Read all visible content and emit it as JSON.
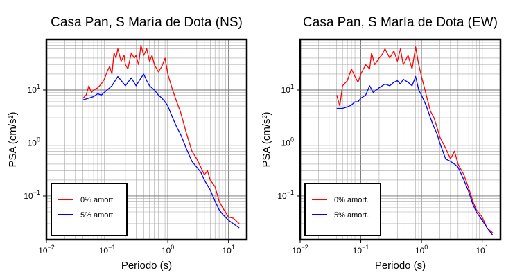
{
  "chart_data": [
    {
      "type": "line",
      "title": "Casa Pan, S María de Dota (NS)",
      "xlabel": "Periodo (s)",
      "ylabel": "PSA (cm/s²)",
      "xscale": "log",
      "yscale": "log",
      "xlim": [
        0.01,
        20
      ],
      "ylim": [
        0.015,
        90
      ],
      "xticks": [
        {
          "base": "10",
          "exp": "−2"
        },
        {
          "base": "10",
          "exp": "−1"
        },
        {
          "base": "10",
          "exp": "0"
        },
        {
          "base": "10",
          "exp": "1"
        }
      ],
      "yticks": [
        {
          "base": "10",
          "exp": "−1"
        },
        {
          "base": "10",
          "exp": "0"
        },
        {
          "base": "10",
          "exp": "1"
        }
      ],
      "grid": true,
      "legend_position": "bottom-left",
      "series": [
        {
          "name": "0% amort.",
          "color": "#ff0000",
          "x": [
            0.04,
            0.045,
            0.05,
            0.055,
            0.06,
            0.07,
            0.08,
            0.09,
            0.1,
            0.11,
            0.12,
            0.13,
            0.14,
            0.15,
            0.17,
            0.19,
            0.2,
            0.22,
            0.25,
            0.28,
            0.3,
            0.33,
            0.36,
            0.4,
            0.45,
            0.5,
            0.55,
            0.6,
            0.7,
            0.8,
            0.9,
            1.0,
            1.2,
            1.4,
            1.6,
            1.8,
            2.0,
            2.5,
            3.0,
            3.5,
            4.0,
            4.5,
            5.0,
            6.0,
            7.0,
            8.0,
            10.0,
            12.0,
            15.0
          ],
          "y": [
            7,
            8,
            12,
            9,
            10,
            11,
            13,
            16,
            22,
            28,
            20,
            50,
            40,
            60,
            35,
            45,
            30,
            25,
            50,
            40,
            45,
            30,
            70,
            45,
            60,
            35,
            45,
            30,
            22,
            28,
            40,
            20,
            10,
            6,
            4,
            2.5,
            1.6,
            0.7,
            0.5,
            0.35,
            0.25,
            0.3,
            0.2,
            0.15,
            0.08,
            0.06,
            0.04,
            0.038,
            0.03
          ]
        },
        {
          "name": "5% amort.",
          "color": "#0000ff",
          "x": [
            0.04,
            0.05,
            0.06,
            0.07,
            0.08,
            0.09,
            0.1,
            0.12,
            0.15,
            0.18,
            0.2,
            0.25,
            0.3,
            0.35,
            0.4,
            0.45,
            0.5,
            0.6,
            0.7,
            0.8,
            0.9,
            1.0,
            1.2,
            1.4,
            1.6,
            1.8,
            2.0,
            2.5,
            3.0,
            3.5,
            4.0,
            5.0,
            6.0,
            7.0,
            8.0,
            10.0,
            12.0,
            15.0
          ],
          "y": [
            6.5,
            7,
            7.5,
            8.5,
            8,
            9,
            10,
            12,
            18,
            14,
            12,
            17,
            12,
            16,
            20,
            15,
            12,
            10,
            8,
            7,
            6,
            5,
            3,
            2,
            1.5,
            1.1,
            0.8,
            0.45,
            0.35,
            0.28,
            0.2,
            0.13,
            0.08,
            0.055,
            0.045,
            0.035,
            0.03,
            0.025
          ]
        }
      ]
    },
    {
      "type": "line",
      "title": "Casa Pan, S María de Dota (EW)",
      "xlabel": "Periodo (s)",
      "ylabel": "PSA (cm/s²)",
      "xscale": "log",
      "yscale": "log",
      "xlim": [
        0.01,
        20
      ],
      "ylim": [
        0.015,
        90
      ],
      "xticks": [
        {
          "base": "10",
          "exp": "−2"
        },
        {
          "base": "10",
          "exp": "−1"
        },
        {
          "base": "10",
          "exp": "0"
        },
        {
          "base": "10",
          "exp": "1"
        }
      ],
      "yticks": [
        {
          "base": "10",
          "exp": "−1"
        },
        {
          "base": "10",
          "exp": "0"
        },
        {
          "base": "10",
          "exp": "1"
        }
      ],
      "grid": true,
      "legend_position": "bottom-left",
      "series": [
        {
          "name": "0% amort.",
          "color": "#ff0000",
          "x": [
            0.04,
            0.045,
            0.05,
            0.06,
            0.07,
            0.08,
            0.09,
            0.1,
            0.12,
            0.14,
            0.15,
            0.17,
            0.2,
            0.22,
            0.25,
            0.3,
            0.35,
            0.4,
            0.45,
            0.5,
            0.6,
            0.7,
            0.8,
            0.9,
            1.0,
            1.2,
            1.4,
            1.6,
            1.8,
            2.0,
            2.5,
            3.0,
            3.5,
            4.0,
            5.0,
            6.0,
            7.0,
            8.0,
            10.0,
            12.0,
            15.0
          ],
          "y": [
            8,
            5,
            12,
            15,
            25,
            18,
            14,
            20,
            30,
            25,
            50,
            30,
            40,
            45,
            60,
            40,
            55,
            35,
            60,
            30,
            45,
            25,
            65,
            30,
            18,
            8,
            4,
            3,
            2,
            1.3,
            0.8,
            0.5,
            0.7,
            0.4,
            0.25,
            0.14,
            0.08,
            0.055,
            0.04,
            0.025,
            0.02
          ]
        },
        {
          "name": "5% amort.",
          "color": "#0000ff",
          "x": [
            0.04,
            0.05,
            0.06,
            0.07,
            0.08,
            0.09,
            0.1,
            0.12,
            0.14,
            0.16,
            0.18,
            0.2,
            0.25,
            0.3,
            0.35,
            0.4,
            0.45,
            0.5,
            0.6,
            0.7,
            0.8,
            0.9,
            1.0,
            1.2,
            1.4,
            1.6,
            1.8,
            2.0,
            2.5,
            3.0,
            3.5,
            4.0,
            5.0,
            6.0,
            7.0,
            8.0,
            10.0,
            12.0,
            15.0
          ],
          "y": [
            4.5,
            4.5,
            4.8,
            5.2,
            6,
            6,
            7,
            8,
            12,
            9,
            10,
            11,
            13,
            12,
            14,
            15,
            13,
            16,
            14,
            12,
            18,
            10,
            8,
            5,
            3,
            2,
            1.5,
            1,
            0.5,
            0.45,
            0.4,
            0.35,
            0.2,
            0.12,
            0.07,
            0.05,
            0.035,
            0.025,
            0.018
          ]
        }
      ]
    }
  ]
}
